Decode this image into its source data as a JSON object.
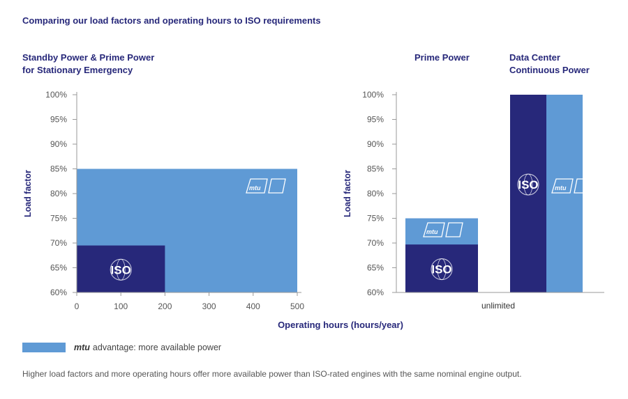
{
  "title": "Comparing our load factors and operating hours to ISO requirements",
  "colors": {
    "mtu": "#5f9ad5",
    "iso": "#27287a",
    "axis": "#999999",
    "text": "#555555"
  },
  "chart_data": [
    {
      "type": "area",
      "title_line1": "Standby Power & Prime Power",
      "title_line2": "for Stationary Emergency",
      "ylabel": "Load factor",
      "xlabel": "Operating hours (hours/year)",
      "xlim": [
        0,
        500
      ],
      "ylim": [
        60,
        100
      ],
      "x_ticks": [
        0,
        100,
        200,
        300,
        400,
        500
      ],
      "y_ticks": [
        "60%",
        "65%",
        "70%",
        "75%",
        "80%",
        "85%",
        "90%",
        "95%",
        "100%"
      ],
      "series": [
        {
          "name": "mtu",
          "x_max": 500,
          "load_factor": 85
        },
        {
          "name": "ISO",
          "x_max": 200,
          "load_factor": 69.5
        }
      ]
    },
    {
      "type": "bar",
      "ylabel": "Load factor",
      "ylim": [
        60,
        100
      ],
      "y_ticks": [
        "60%",
        "65%",
        "70%",
        "75%",
        "80%",
        "85%",
        "90%",
        "95%",
        "100%"
      ],
      "x_label": "unlimited",
      "categories": [
        "Prime Power",
        "Data Center Continuous Power"
      ],
      "category_lines": [
        [
          "Prime Power"
        ],
        [
          "Data Center",
          "Continuous Power"
        ]
      ],
      "series": [
        {
          "name": "ISO",
          "values": [
            69.7,
            100
          ]
        },
        {
          "name": "mtu",
          "values": [
            75,
            100
          ]
        }
      ]
    }
  ],
  "logos": {
    "iso": "ISO",
    "mtu": "mtu"
  },
  "legend": {
    "brand": "mtu",
    "label": "advantage: more available power"
  },
  "footnote": "Higher load factors and more operating hours offer more available power than ISO-rated engines with the same nominal engine output."
}
